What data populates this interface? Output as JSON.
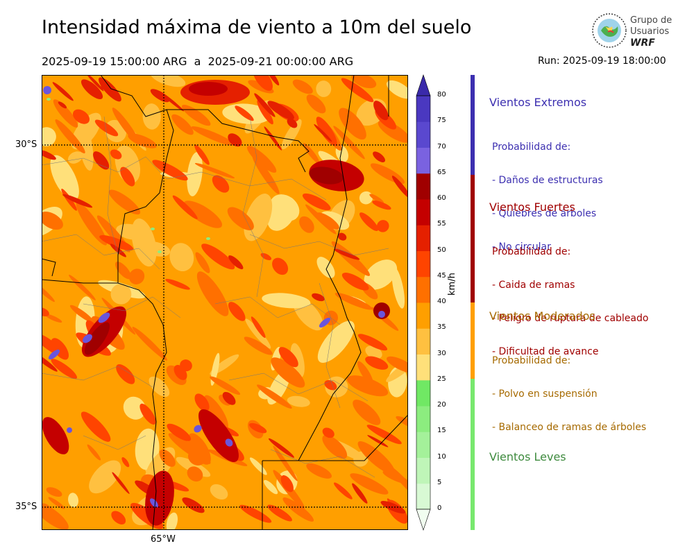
{
  "header": {
    "title": "Intensidad máxima de viento a 10m del suelo",
    "subtitle": "2025-09-19 15:00:00 ARG  a  2025-09-21 00:00:00 ARG",
    "run": "Run: 2025-09-19 18:00:00"
  },
  "logo": {
    "line1": "Grupo de",
    "line2": "Usuarios",
    "line3": "WRF"
  },
  "axes": {
    "lat_labels": [
      "30°S",
      "35°S"
    ],
    "lon_labels": [
      "65°W"
    ]
  },
  "colorbar": {
    "unit": "km/h",
    "ticks": [
      "0",
      "5",
      "10",
      "15",
      "20",
      "25",
      "30",
      "35",
      "40",
      "45",
      "50",
      "55",
      "60",
      "65",
      "70",
      "75",
      "80"
    ],
    "colors": [
      "#f1fdf0",
      "#d8f9d4",
      "#bff5b8",
      "#a4f19a",
      "#8ced7f",
      "#70e864",
      "#ffe07a",
      "#ffc040",
      "#ff9f00",
      "#ff7000",
      "#ff4400",
      "#e52000",
      "#c40000",
      "#a00000",
      "#7a62e0",
      "#5a48cf",
      "#4a38c0",
      "#3a2aaa"
    ]
  },
  "categories": [
    {
      "title": "Vientos Extremos",
      "color": "#3c2fb0",
      "lines": [
        "Probabilidad de:",
        "- Daños de estructuras",
        "- Quiebres de árboles",
        "- No circular"
      ]
    },
    {
      "title": "Vientos Fuertes",
      "color": "#a00000",
      "lines": [
        "Probabilidad de:",
        "- Caida de ramas",
        "- Peligro de ruptura de cableado",
        "- Dificultad de avance"
      ]
    },
    {
      "title": "Vientos Moderados",
      "color": "#a66a00",
      "lines": [
        "Probabilidad de:",
        "- Polvo en suspensión",
        "- Balanceo de ramas de árboles"
      ]
    },
    {
      "title": "Vientos Leves",
      "color": "#3d8a3d",
      "lines": []
    }
  ]
}
